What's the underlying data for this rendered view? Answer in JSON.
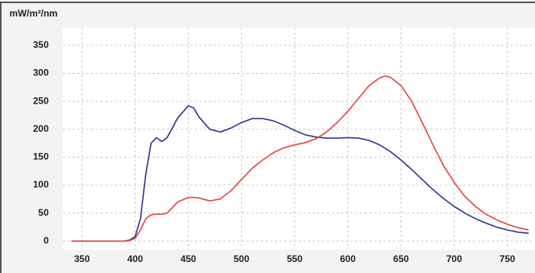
{
  "chart_data": {
    "type": "line",
    "title": "mW/m²/nm",
    "x": [
      340,
      350,
      360,
      370,
      380,
      390,
      395,
      400,
      405,
      410,
      415,
      420,
      425,
      430,
      440,
      450,
      455,
      460,
      470,
      480,
      490,
      500,
      510,
      520,
      530,
      540,
      550,
      560,
      570,
      580,
      590,
      600,
      610,
      620,
      630,
      635,
      640,
      650,
      660,
      670,
      680,
      690,
      700,
      710,
      720,
      730,
      740,
      750,
      760,
      770
    ],
    "series": [
      {
        "color": "#2e3190",
        "values": [
          0,
          0,
          0,
          0,
          0,
          0,
          2,
          8,
          40,
          120,
          175,
          185,
          178,
          185,
          220,
          242,
          238,
          222,
          200,
          195,
          202,
          212,
          219,
          219,
          215,
          207,
          198,
          190,
          186,
          184,
          184,
          185,
          184,
          180,
          172,
          166,
          160,
          145,
          128,
          110,
          92,
          76,
          62,
          50,
          40,
          32,
          25,
          20,
          16,
          14
        ]
      },
      {
        "color": "#e8403e",
        "values": [
          0,
          0,
          0,
          0,
          0,
          0,
          1,
          5,
          20,
          40,
          47,
          48,
          48,
          50,
          70,
          78,
          78,
          77,
          72,
          75,
          90,
          110,
          130,
          145,
          158,
          167,
          172,
          176,
          183,
          195,
          212,
          232,
          255,
          278,
          292,
          295,
          293,
          278,
          250,
          212,
          172,
          135,
          105,
          80,
          62,
          48,
          38,
          30,
          24,
          20
        ]
      }
    ],
    "xlim": [
      332,
      776
    ],
    "ylim": [
      -15,
      382
    ],
    "xticks": [
      350,
      400,
      450,
      500,
      550,
      600,
      650,
      700,
      750
    ],
    "yticks": [
      0,
      50,
      100,
      150,
      200,
      250,
      300,
      350
    ],
    "grid": true
  }
}
